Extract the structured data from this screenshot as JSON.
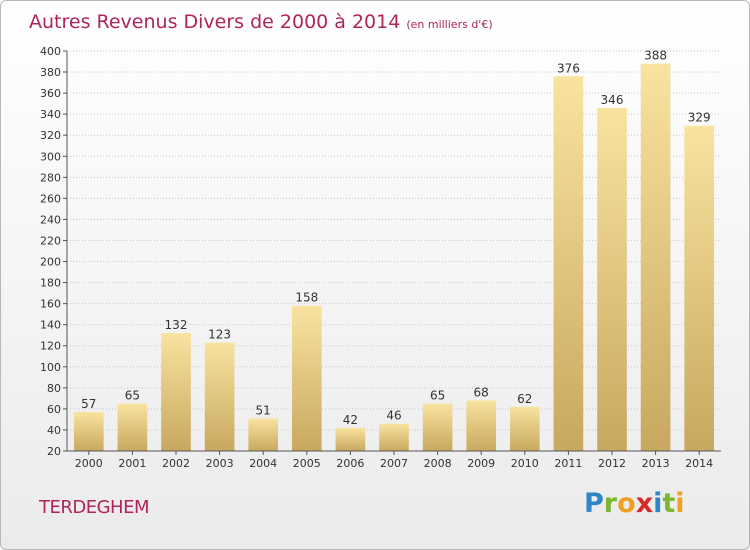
{
  "header": {
    "title": "Autres Revenus Divers de 2000 à 2014",
    "unit": "(en milliers d'€)"
  },
  "footer": {
    "location": "TERDEGHEM",
    "logo_letters": [
      {
        "char": "P",
        "color": "#2e86c8"
      },
      {
        "char": "r",
        "color": "#7cb82f"
      },
      {
        "char": "o",
        "color": "#f0a020"
      },
      {
        "char": "x",
        "color": "#d8282a"
      },
      {
        "char": "i",
        "color": "#2e86c8"
      },
      {
        "char": "t",
        "color": "#7cb82f"
      },
      {
        "char": "i",
        "color": "#f0a020"
      }
    ]
  },
  "chart_data": {
    "type": "bar",
    "categories": [
      "2000",
      "2001",
      "2002",
      "2003",
      "2004",
      "2005",
      "2006",
      "2007",
      "2008",
      "2009",
      "2010",
      "2011",
      "2012",
      "2013",
      "2014"
    ],
    "values": [
      57,
      65,
      132,
      123,
      51,
      158,
      42,
      46,
      65,
      68,
      62,
      376,
      346,
      388,
      329
    ],
    "ylim": [
      20,
      400
    ],
    "yticks": [
      20,
      40,
      60,
      80,
      100,
      120,
      140,
      160,
      180,
      200,
      220,
      240,
      260,
      280,
      300,
      320,
      340,
      360,
      380,
      400
    ],
    "grid": "horizontal",
    "colors": {
      "bar_light": "#f9e3a0",
      "bar_dark": "#c8a85e",
      "grid": "#c8c8c8",
      "axis": "#555555"
    }
  }
}
